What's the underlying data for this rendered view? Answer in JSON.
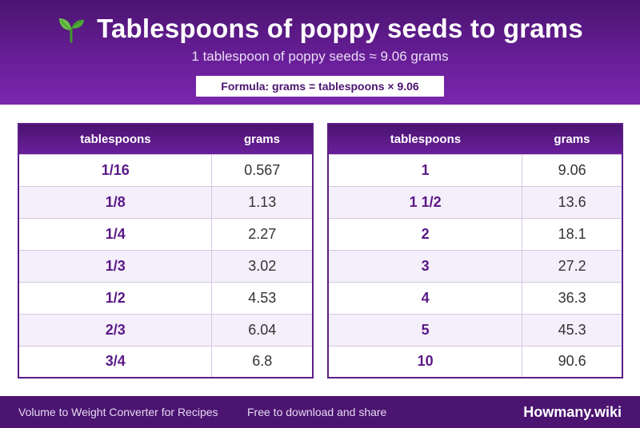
{
  "header": {
    "title": "Tablespoons of poppy seeds to grams",
    "subtitle": "1 tablespoon of poppy seeds ≈ 9.06 grams",
    "formula": "Formula: grams = tablespoons × 9.06",
    "icon": "sprout-icon"
  },
  "tables": {
    "col_tbsp": "tablespoons",
    "col_grams": "grams",
    "left": [
      {
        "tbsp": "1/16",
        "grams": "0.567"
      },
      {
        "tbsp": "1/8",
        "grams": "1.13"
      },
      {
        "tbsp": "1/4",
        "grams": "2.27"
      },
      {
        "tbsp": "1/3",
        "grams": "3.02"
      },
      {
        "tbsp": "1/2",
        "grams": "4.53"
      },
      {
        "tbsp": "2/3",
        "grams": "6.04"
      },
      {
        "tbsp": "3/4",
        "grams": "6.8"
      }
    ],
    "right": [
      {
        "tbsp": "1",
        "grams": "9.06"
      },
      {
        "tbsp": "1 1/2",
        "grams": "13.6"
      },
      {
        "tbsp": "2",
        "grams": "18.1"
      },
      {
        "tbsp": "3",
        "grams": "27.2"
      },
      {
        "tbsp": "4",
        "grams": "36.3"
      },
      {
        "tbsp": "5",
        "grams": "45.3"
      },
      {
        "tbsp": "10",
        "grams": "90.6"
      }
    ]
  },
  "footer": {
    "left_text": "Volume to Weight Converter for Recipes",
    "middle_text": "Free to download and share",
    "brand": "Howmany.wiki"
  },
  "colors": {
    "accent": "#5a1887",
    "header_dark": "#4b1470",
    "header_light": "#7a28ad",
    "row_alt": "#f4effa"
  }
}
